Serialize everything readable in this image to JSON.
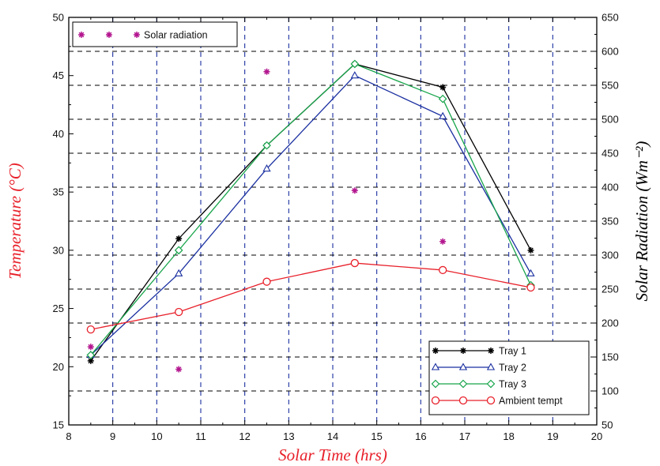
{
  "chart_data": {
    "type": "line",
    "xlabel": "Solar Time (hrs)",
    "ylabel_left": "Temperature (°C)",
    "ylabel_right": "Solar Radiation (Wm⁻²)",
    "xlim": [
      8,
      20
    ],
    "ylim_left": [
      15,
      50
    ],
    "ylim_right": [
      50,
      650
    ],
    "x_ticks": [
      "8",
      "9",
      "10",
      "11",
      "12",
      "13",
      "14",
      "15",
      "16",
      "17",
      "18",
      "19",
      "20"
    ],
    "y_ticks_left": [
      "15",
      "20",
      "25",
      "30",
      "35",
      "40",
      "45",
      "50"
    ],
    "y_ticks_right": [
      "50",
      "100",
      "150",
      "200",
      "250",
      "300",
      "350",
      "400",
      "450",
      "500",
      "550",
      "600",
      "650"
    ],
    "grid": true,
    "colors": {
      "tray1": "#000000",
      "tray2": "#1a2fa0",
      "tray3": "#17a44a",
      "ambient": "#e8202a",
      "radiation": "#b3168f",
      "grid_vertical": "#1a2fa0",
      "grid_horizontal": "#000000",
      "axis_title": "#e8202a"
    },
    "series": [
      {
        "name": "Tray 1",
        "axis": "left",
        "marker": "star",
        "x": [
          8.5,
          10.5,
          12.5,
          14.5,
          16.5,
          18.5
        ],
        "values": [
          20.5,
          31,
          39,
          46,
          44,
          30
        ]
      },
      {
        "name": "Tray 2",
        "axis": "left",
        "marker": "triangle",
        "x": [
          8.5,
          10.5,
          12.5,
          14.5,
          16.5,
          18.5
        ],
        "values": [
          21,
          28,
          37,
          45,
          41.5,
          28
        ]
      },
      {
        "name": "Tray 3",
        "axis": "left",
        "marker": "diamond",
        "x": [
          8.5,
          10.5,
          12.5,
          14.5,
          16.5,
          18.5
        ],
        "values": [
          21,
          30,
          39,
          46,
          43,
          27
        ]
      },
      {
        "name": "Ambient tempt",
        "axis": "left",
        "marker": "circle",
        "x": [
          8.5,
          10.5,
          12.5,
          14.5,
          16.5,
          18.5
        ],
        "values": [
          23.2,
          24.7,
          27.3,
          28.9,
          28.3,
          26.8
        ]
      },
      {
        "name": "Solar radiation",
        "axis": "right",
        "marker": "star",
        "line": false,
        "x": [
          8.5,
          10.5,
          12.5,
          14.5,
          16.5
        ],
        "values": [
          165,
          132,
          570,
          395,
          320
        ]
      }
    ],
    "legends": [
      {
        "placement": "top-left",
        "entries": [
          "Solar radiation"
        ]
      },
      {
        "placement": "bottom-right",
        "entries": [
          "Tray 1",
          "Tray 2",
          "Tray 3",
          "Ambient tempt"
        ]
      }
    ]
  }
}
